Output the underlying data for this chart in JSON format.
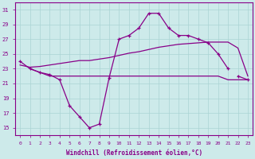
{
  "xlabel": "Windchill (Refroidissement éolien,°C)",
  "x": [
    0,
    1,
    2,
    3,
    4,
    5,
    6,
    7,
    8,
    9,
    10,
    11,
    12,
    13,
    14,
    15,
    16,
    17,
    18,
    19,
    20,
    21,
    22,
    23
  ],
  "line_main": [
    24.0,
    23.0,
    22.5,
    22.2,
    21.5,
    18.0,
    16.5,
    15.0,
    15.5,
    21.8,
    27.0,
    27.5,
    28.5,
    30.5,
    30.5,
    28.5,
    27.5,
    27.5,
    27.0,
    26.5,
    25.0,
    23.0,
    null,
    null
  ],
  "line_main_ext": [
    null,
    null,
    null,
    null,
    null,
    null,
    null,
    null,
    null,
    null,
    null,
    null,
    null,
    null,
    null,
    null,
    null,
    null,
    null,
    null,
    null,
    null,
    22.0,
    21.5
  ],
  "line_flat": [
    null,
    23.0,
    22.5,
    22.0,
    22.0,
    22.0,
    22.0,
    22.0,
    22.0,
    22.0,
    22.0,
    22.0,
    22.0,
    22.0,
    22.0,
    22.0,
    22.0,
    22.0,
    22.0,
    22.0,
    22.0,
    21.5,
    21.5,
    21.5
  ],
  "line_trend": [
    24.0,
    null,
    null,
    null,
    null,
    null,
    null,
    null,
    null,
    null,
    null,
    null,
    null,
    null,
    null,
    null,
    null,
    null,
    null,
    null,
    null,
    null,
    null,
    null
  ],
  "line_trend_full": [
    23.5,
    23.2,
    23.3,
    23.5,
    23.7,
    23.9,
    24.1,
    24.1,
    24.3,
    24.5,
    24.8,
    25.1,
    25.3,
    25.6,
    25.9,
    26.1,
    26.3,
    26.4,
    26.5,
    26.6,
    26.6,
    26.6,
    25.8,
    22.0
  ],
  "bg_color": "#cdeaea",
  "grid_color": "#aad4d4",
  "line_color": "#880088",
  "ylim": [
    14,
    32
  ],
  "yticks": [
    15,
    17,
    19,
    21,
    23,
    25,
    27,
    29,
    31
  ],
  "xlim": [
    -0.5,
    23.5
  ]
}
